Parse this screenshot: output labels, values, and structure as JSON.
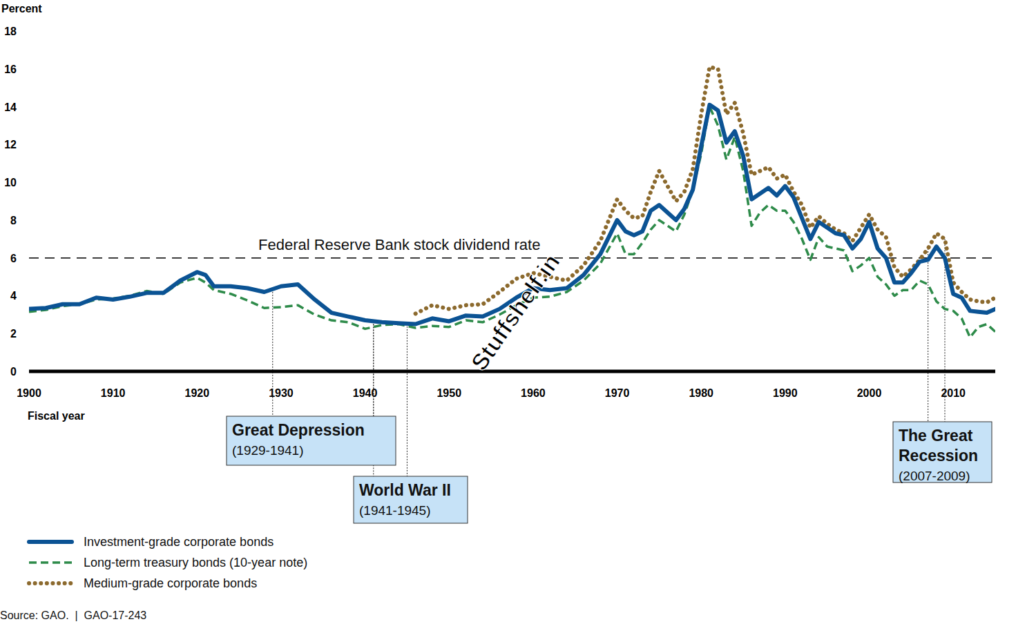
{
  "chart_data": {
    "type": "line",
    "y_label": "Percent",
    "x_label": "Fiscal year",
    "source": "Source: GAO.  |  GAO-17-243",
    "watermark": "Stuffshelf.in",
    "legend": "bottom-left",
    "grid": false,
    "xlim": [
      1900,
      2015
    ],
    "xticks": [
      1900,
      1910,
      1920,
      1930,
      1940,
      1950,
      1960,
      1970,
      1980,
      1990,
      2000,
      2010
    ],
    "ylim": [
      0,
      18
    ],
    "yticks": [
      0,
      2,
      4,
      6,
      8,
      10,
      12,
      14,
      16,
      18
    ],
    "x": [
      1900,
      1902,
      1904,
      1906,
      1908,
      1910,
      1912,
      1914,
      1916,
      1918,
      1920,
      1921,
      1922,
      1924,
      1926,
      1928,
      1930,
      1932,
      1934,
      1936,
      1938,
      1940,
      1942,
      1944,
      1946,
      1948,
      1950,
      1952,
      1954,
      1956,
      1958,
      1960,
      1962,
      1964,
      1966,
      1968,
      1970,
      1971,
      1972,
      1973,
      1974,
      1975,
      1976,
      1977,
      1978,
      1979,
      1980,
      1981,
      1982,
      1983,
      1984,
      1985,
      1986,
      1987,
      1988,
      1989,
      1990,
      1991,
      1992,
      1993,
      1994,
      1995,
      1996,
      1997,
      1998,
      1999,
      2000,
      2001,
      2002,
      2003,
      2004,
      2005,
      2006,
      2007,
      2008,
      2009,
      2010,
      2011,
      2012,
      2013,
      2014,
      2015
    ],
    "series": [
      {
        "name": "Investment-grade corporate bonds",
        "color": "#0b5394",
        "line_style": "solid",
        "values": [
          3.3,
          3.35,
          3.55,
          3.55,
          3.9,
          3.8,
          3.95,
          4.15,
          4.15,
          4.8,
          5.25,
          5.1,
          4.5,
          4.5,
          4.4,
          4.2,
          4.5,
          4.6,
          3.8,
          3.1,
          2.9,
          2.7,
          2.6,
          2.55,
          2.5,
          2.8,
          2.65,
          2.95,
          2.9,
          3.3,
          3.9,
          4.4,
          4.3,
          4.4,
          5.1,
          6.2,
          8.0,
          7.4,
          7.2,
          7.4,
          8.5,
          8.8,
          8.4,
          8.0,
          8.6,
          9.6,
          11.9,
          14.1,
          13.8,
          12.1,
          12.7,
          11.4,
          9.1,
          9.4,
          9.7,
          9.3,
          9.8,
          9.2,
          8.1,
          7.0,
          7.9,
          7.6,
          7.3,
          7.2,
          6.5,
          7.0,
          7.9,
          6.5,
          6.0,
          4.7,
          4.7,
          5.2,
          5.8,
          5.9,
          6.6,
          6.0,
          4.1,
          3.9,
          3.2,
          3.15,
          3.1,
          3.3
        ]
      },
      {
        "name": "Long-term treasury bonds (10-year note)",
        "color": "#2e8b4a",
        "line_style": "dashed",
        "values": [
          3.15,
          3.25,
          3.45,
          3.55,
          3.8,
          3.85,
          4.0,
          4.25,
          4.1,
          4.7,
          4.95,
          4.7,
          4.3,
          4.1,
          3.75,
          3.35,
          3.4,
          3.5,
          3.0,
          2.7,
          2.6,
          2.25,
          2.45,
          2.5,
          2.3,
          2.4,
          2.35,
          2.7,
          2.6,
          3.0,
          3.5,
          3.9,
          3.95,
          4.2,
          4.8,
          5.7,
          7.3,
          6.2,
          6.2,
          6.8,
          7.5,
          8.0,
          7.7,
          7.4,
          8.3,
          9.6,
          11.5,
          14.0,
          13.0,
          11.2,
          12.4,
          10.6,
          7.7,
          8.4,
          8.8,
          8.5,
          8.5,
          7.9,
          7.0,
          5.9,
          7.1,
          6.6,
          6.5,
          6.4,
          5.3,
          5.6,
          6.0,
          5.0,
          4.6,
          4.0,
          4.3,
          4.3,
          4.8,
          4.6,
          3.7,
          3.3,
          3.2,
          2.8,
          1.8,
          2.35,
          2.5,
          2.1
        ]
      },
      {
        "name": "Medium-grade corporate bonds",
        "color": "#8c6a2e",
        "line_style": "dotted",
        "values": [
          null,
          null,
          null,
          null,
          null,
          null,
          null,
          null,
          null,
          null,
          null,
          null,
          null,
          null,
          null,
          null,
          null,
          null,
          null,
          null,
          null,
          null,
          null,
          null,
          3.05,
          3.5,
          3.3,
          3.5,
          3.55,
          4.2,
          4.9,
          5.2,
          5.0,
          4.8,
          5.6,
          6.9,
          9.1,
          8.5,
          8.1,
          8.2,
          9.5,
          10.6,
          9.8,
          9.0,
          9.5,
          10.7,
          13.6,
          16.1,
          16.0,
          13.6,
          14.2,
          12.6,
          10.4,
          10.6,
          10.8,
          10.2,
          10.4,
          9.5,
          8.8,
          7.6,
          8.2,
          7.8,
          7.5,
          7.3,
          6.9,
          7.6,
          8.3,
          7.5,
          7.1,
          5.5,
          5.0,
          5.4,
          5.9,
          6.5,
          7.3,
          7.0,
          4.7,
          4.2,
          3.8,
          3.7,
          3.65,
          3.9
        ]
      }
    ],
    "annotations": {
      "reference_line": {
        "value": 6,
        "label": "Federal Reserve Bank stock dividend rate"
      },
      "events": [
        {
          "label": [
            "Great Depression"
          ],
          "period": "(1929-1941)",
          "start": 1929,
          "end": 1941
        },
        {
          "label": [
            "World War II"
          ],
          "period": "(1941-1945)",
          "start": 1941,
          "end": 1945
        },
        {
          "label": [
            "The Great",
            "Recession"
          ],
          "period": "(2007-2009)",
          "start": 2007,
          "end": 2009
        }
      ]
    }
  }
}
